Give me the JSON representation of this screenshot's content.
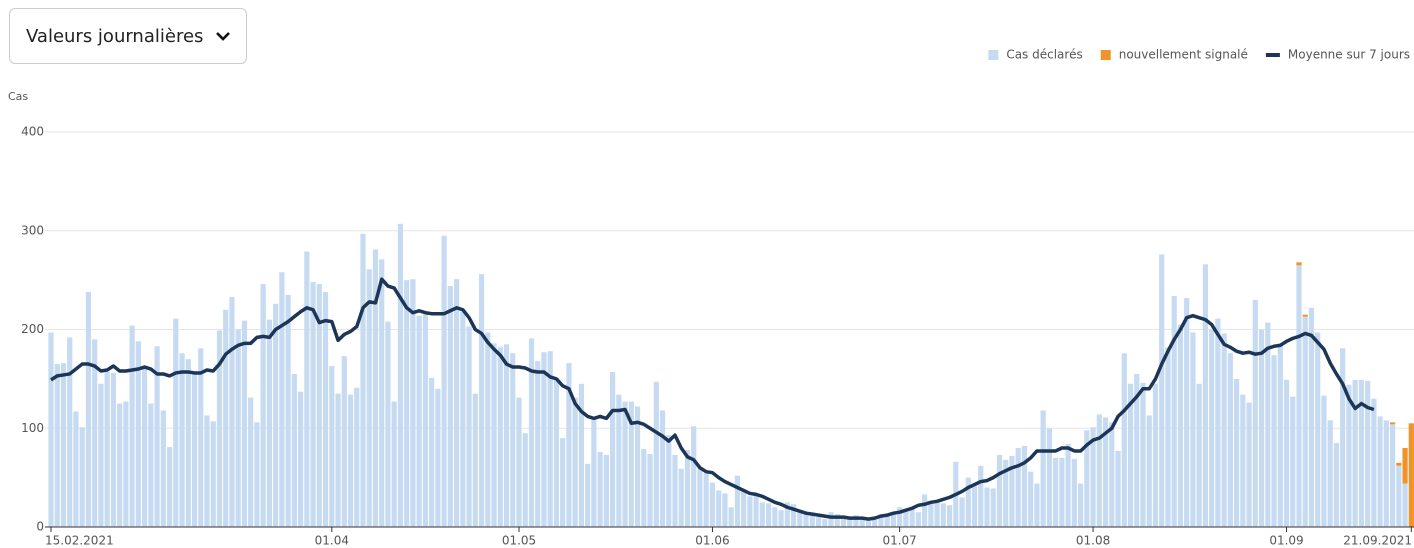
{
  "dropdown": "Valeurs journalières",
  "chart_data": {
    "type": "bar",
    "stacked": true,
    "y_label": "Cas",
    "grid": true,
    "legend": "top-right",
    "ylim": [
      0,
      400
    ],
    "yticks": [
      0,
      100,
      200,
      300,
      400
    ],
    "xticks": [
      "15.02.2021",
      {
        "value": "01.04.2021",
        "label": "01.04"
      },
      {
        "value": "01.05.2021",
        "label": "01.05"
      },
      {
        "value": "01.06.2021",
        "label": "01.06"
      },
      {
        "value": "01.07.2021",
        "label": "01.07"
      },
      {
        "value": "01.08.2021",
        "label": "01.08"
      },
      {
        "value": "01.09.2021",
        "label": "01.09"
      },
      "21.09.2021"
    ],
    "x": [
      "15.02.2021",
      "16.02.2021",
      "17.02.2021",
      "18.02.2021",
      "19.02.2021",
      "20.02.2021",
      "21.02.2021",
      "22.02.2021",
      "23.02.2021",
      "24.02.2021",
      "25.02.2021",
      "26.02.2021",
      "27.02.2021",
      "28.02.2021",
      "01.03.2021",
      "02.03.2021",
      "03.03.2021",
      "04.03.2021",
      "05.03.2021",
      "06.03.2021",
      "07.03.2021",
      "08.03.2021",
      "09.03.2021",
      "10.03.2021",
      "11.03.2021",
      "12.03.2021",
      "13.03.2021",
      "14.03.2021",
      "15.03.2021",
      "16.03.2021",
      "17.03.2021",
      "18.03.2021",
      "19.03.2021",
      "20.03.2021",
      "21.03.2021",
      "22.03.2021",
      "23.03.2021",
      "24.03.2021",
      "25.03.2021",
      "26.03.2021",
      "27.03.2021",
      "28.03.2021",
      "29.03.2021",
      "30.03.2021",
      "31.03.2021",
      "01.04.2021",
      "02.04.2021",
      "03.04.2021",
      "04.04.2021",
      "05.04.2021",
      "06.04.2021",
      "07.04.2021",
      "08.04.2021",
      "09.04.2021",
      "10.04.2021",
      "11.04.2021",
      "12.04.2021",
      "13.04.2021",
      "14.04.2021",
      "15.04.2021",
      "16.04.2021",
      "17.04.2021",
      "18.04.2021",
      "19.04.2021",
      "20.04.2021",
      "21.04.2021",
      "22.04.2021",
      "23.04.2021",
      "24.04.2021",
      "25.04.2021",
      "26.04.2021",
      "27.04.2021",
      "28.04.2021",
      "29.04.2021",
      "30.04.2021",
      "01.05.2021",
      "02.05.2021",
      "03.05.2021",
      "04.05.2021",
      "05.05.2021",
      "06.05.2021",
      "07.05.2021",
      "08.05.2021",
      "09.05.2021",
      "10.05.2021",
      "11.05.2021",
      "12.05.2021",
      "13.05.2021",
      "14.05.2021",
      "15.05.2021",
      "16.05.2021",
      "17.05.2021",
      "18.05.2021",
      "19.05.2021",
      "20.05.2021",
      "21.05.2021",
      "22.05.2021",
      "23.05.2021",
      "24.05.2021",
      "25.05.2021",
      "26.05.2021",
      "27.05.2021",
      "28.05.2021",
      "29.05.2021",
      "30.05.2021",
      "31.05.2021",
      "01.06.2021",
      "02.06.2021",
      "03.06.2021",
      "04.06.2021",
      "05.06.2021",
      "06.06.2021",
      "07.06.2021",
      "08.06.2021",
      "09.06.2021",
      "10.06.2021",
      "11.06.2021",
      "12.06.2021",
      "13.06.2021",
      "14.06.2021",
      "15.06.2021",
      "16.06.2021",
      "17.06.2021",
      "18.06.2021",
      "19.06.2021",
      "20.06.2021",
      "21.06.2021",
      "22.06.2021",
      "23.06.2021",
      "24.06.2021",
      "25.06.2021",
      "26.06.2021",
      "27.06.2021",
      "28.06.2021",
      "29.06.2021",
      "30.06.2021",
      "01.07.2021",
      "02.07.2021",
      "03.07.2021",
      "04.07.2021",
      "05.07.2021",
      "06.07.2021",
      "07.07.2021",
      "08.07.2021",
      "09.07.2021",
      "10.07.2021",
      "11.07.2021",
      "12.07.2021",
      "13.07.2021",
      "14.07.2021",
      "15.07.2021",
      "16.07.2021",
      "17.07.2021",
      "18.07.2021",
      "19.07.2021",
      "20.07.2021",
      "21.07.2021",
      "22.07.2021",
      "23.07.2021",
      "24.07.2021",
      "25.07.2021",
      "26.07.2021",
      "27.07.2021",
      "28.07.2021",
      "29.07.2021",
      "30.07.2021",
      "31.07.2021",
      "01.08.2021",
      "02.08.2021",
      "03.08.2021",
      "04.08.2021",
      "05.08.2021",
      "06.08.2021",
      "07.08.2021",
      "08.08.2021",
      "09.08.2021",
      "10.08.2021",
      "11.08.2021",
      "12.08.2021",
      "13.08.2021",
      "14.08.2021",
      "15.08.2021",
      "16.08.2021",
      "17.08.2021",
      "18.08.2021",
      "19.08.2021",
      "20.08.2021",
      "21.08.2021",
      "22.08.2021",
      "23.08.2021",
      "24.08.2021",
      "25.08.2021",
      "26.08.2021",
      "27.08.2021",
      "28.08.2021",
      "29.08.2021",
      "30.08.2021",
      "31.08.2021",
      "01.09.2021",
      "02.09.2021",
      "03.09.2021",
      "04.09.2021",
      "05.09.2021",
      "06.09.2021",
      "07.09.2021",
      "08.09.2021",
      "09.09.2021",
      "10.09.2021",
      "11.09.2021",
      "12.09.2021",
      "13.09.2021",
      "14.09.2021",
      "15.09.2021",
      "16.09.2021",
      "17.09.2021",
      "18.09.2021",
      "19.09.2021",
      "20.09.2021",
      "21.09.2021"
    ],
    "series": [
      {
        "name": "Cas déclarés",
        "color": "#c6dbf1",
        "type": "bar",
        "values": [
          197,
          165,
          166,
          192,
          117,
          101,
          238,
          190,
          145,
          157,
          156,
          125,
          127,
          204,
          188,
          160,
          125,
          183,
          118,
          81,
          211,
          176,
          170,
          156,
          181,
          113,
          107,
          199,
          220,
          233,
          200,
          209,
          131,
          106,
          246,
          210,
          226,
          258,
          235,
          155,
          137,
          279,
          248,
          246,
          238,
          163,
          135,
          173,
          134,
          141,
          297,
          261,
          281,
          271,
          208,
          127,
          307,
          250,
          251,
          214,
          215,
          151,
          140,
          295,
          244,
          251,
          218,
          203,
          135,
          256,
          197,
          186,
          182,
          185,
          176,
          131,
          95,
          191,
          168,
          177,
          178,
          151,
          90,
          166,
          131,
          145,
          64,
          109,
          76,
          73,
          157,
          134,
          127,
          127,
          122,
          79,
          74,
          147,
          118,
          93,
          73,
          59,
          78,
          102,
          60,
          55,
          45,
          37,
          34,
          20,
          52,
          38,
          31,
          33,
          25,
          24,
          20,
          17,
          25,
          23,
          15,
          13,
          12,
          10,
          8,
          15,
          13,
          11,
          8,
          12,
          7,
          6,
          8,
          13,
          12,
          15,
          20,
          17,
          20,
          15,
          33,
          25,
          26,
          24,
          22,
          66,
          30,
          50,
          43,
          62,
          40,
          39,
          73,
          68,
          72,
          80,
          82,
          56,
          44,
          118,
          100,
          70,
          70,
          84,
          69,
          44,
          98,
          101,
          114,
          111,
          106,
          77,
          176,
          145,
          155,
          146,
          113,
          145,
          276,
          182,
          234,
          205,
          232,
          197,
          145,
          266,
          200,
          211,
          196,
          176,
          150,
          134,
          126,
          230,
          200,
          207,
          174,
          186,
          149,
          132,
          265,
          213,
          222,
          197,
          133,
          108,
          85,
          181,
          144,
          149,
          149,
          148,
          130,
          112,
          108,
          104,
          62,
          44,
          0
        ]
      },
      {
        "name": "nouvellement signalé",
        "color": "#f0932b",
        "type": "bar",
        "values": [
          0,
          0,
          0,
          0,
          0,
          0,
          0,
          0,
          0,
          0,
          0,
          0,
          0,
          0,
          0,
          0,
          0,
          0,
          0,
          0,
          0,
          0,
          0,
          0,
          0,
          0,
          0,
          0,
          0,
          0,
          0,
          0,
          0,
          0,
          0,
          0,
          0,
          0,
          0,
          0,
          0,
          0,
          0,
          0,
          0,
          0,
          0,
          0,
          0,
          0,
          0,
          0,
          0,
          0,
          0,
          0,
          0,
          0,
          0,
          0,
          0,
          0,
          0,
          0,
          0,
          0,
          0,
          0,
          0,
          0,
          0,
          0,
          0,
          0,
          0,
          0,
          0,
          0,
          0,
          0,
          0,
          0,
          0,
          0,
          0,
          0,
          0,
          0,
          0,
          0,
          0,
          0,
          0,
          0,
          0,
          0,
          0,
          0,
          0,
          0,
          0,
          0,
          0,
          0,
          0,
          0,
          0,
          0,
          0,
          0,
          0,
          0,
          0,
          0,
          0,
          0,
          0,
          0,
          0,
          0,
          0,
          0,
          0,
          0,
          0,
          0,
          0,
          0,
          0,
          0,
          0,
          0,
          0,
          0,
          0,
          0,
          0,
          0,
          0,
          0,
          0,
          0,
          0,
          0,
          0,
          0,
          0,
          0,
          0,
          0,
          0,
          0,
          0,
          0,
          0,
          0,
          0,
          0,
          0,
          0,
          0,
          0,
          0,
          0,
          0,
          0,
          0,
          0,
          0,
          0,
          0,
          0,
          0,
          0,
          0,
          0,
          0,
          0,
          0,
          0,
          0,
          0,
          0,
          0,
          0,
          0,
          0,
          0,
          0,
          0,
          0,
          0,
          0,
          0,
          0,
          0,
          0,
          0,
          0,
          0,
          3,
          2,
          0,
          0,
          0,
          0,
          0,
          0,
          0,
          0,
          0,
          0,
          0,
          0,
          0,
          2,
          3,
          36,
          105
        ]
      },
      {
        "name": "Moyenne sur 7 jours",
        "color": "#1d3557",
        "type": "line",
        "values": [
          149,
          153,
          154,
          155,
          160,
          165,
          165,
          163,
          158,
          159,
          163,
          158,
          158,
          159,
          160,
          162,
          160,
          155,
          155,
          153,
          156,
          157,
          157,
          156,
          156,
          159,
          158,
          165,
          175,
          180,
          184,
          186,
          186,
          192,
          193,
          192,
          200,
          204,
          208,
          213,
          218,
          222,
          220,
          207,
          209,
          208,
          189,
          195,
          198,
          203,
          222,
          228,
          227,
          251,
          244,
          242,
          232,
          222,
          217,
          219,
          217,
          216,
          216,
          216,
          219,
          222,
          220,
          212,
          200,
          196,
          187,
          180,
          174,
          165,
          162,
          162,
          161,
          158,
          157,
          157,
          152,
          150,
          143,
          140,
          125,
          117,
          112,
          110,
          112,
          110,
          118,
          118,
          119,
          105,
          106,
          104,
          100,
          96,
          92,
          87,
          93,
          80,
          71,
          68,
          60,
          56,
          55,
          50,
          46,
          43,
          40,
          37,
          34,
          33,
          31,
          28,
          25,
          23,
          20,
          18,
          16,
          14,
          13,
          12,
          11,
          10,
          10,
          10,
          9,
          9,
          9,
          8,
          9,
          11,
          12,
          14,
          15,
          17,
          19,
          22,
          23,
          25,
          26,
          28,
          30,
          33,
          36,
          40,
          43,
          46,
          47,
          50,
          54,
          57,
          60,
          62,
          65,
          70,
          77,
          77,
          77,
          77,
          80,
          80,
          77,
          77,
          83,
          88,
          90,
          95,
          100,
          112,
          118,
          125,
          132,
          140,
          140,
          150,
          165,
          178,
          190,
          200,
          212,
          214,
          212,
          210,
          205,
          195,
          185,
          182,
          178,
          176,
          177,
          175,
          176,
          181,
          183,
          184,
          188,
          191,
          193,
          196,
          194,
          187,
          180,
          166,
          155,
          145,
          130,
          120,
          125,
          121,
          119,
          null,
          null,
          null,
          null,
          null,
          null
        ]
      }
    ]
  }
}
